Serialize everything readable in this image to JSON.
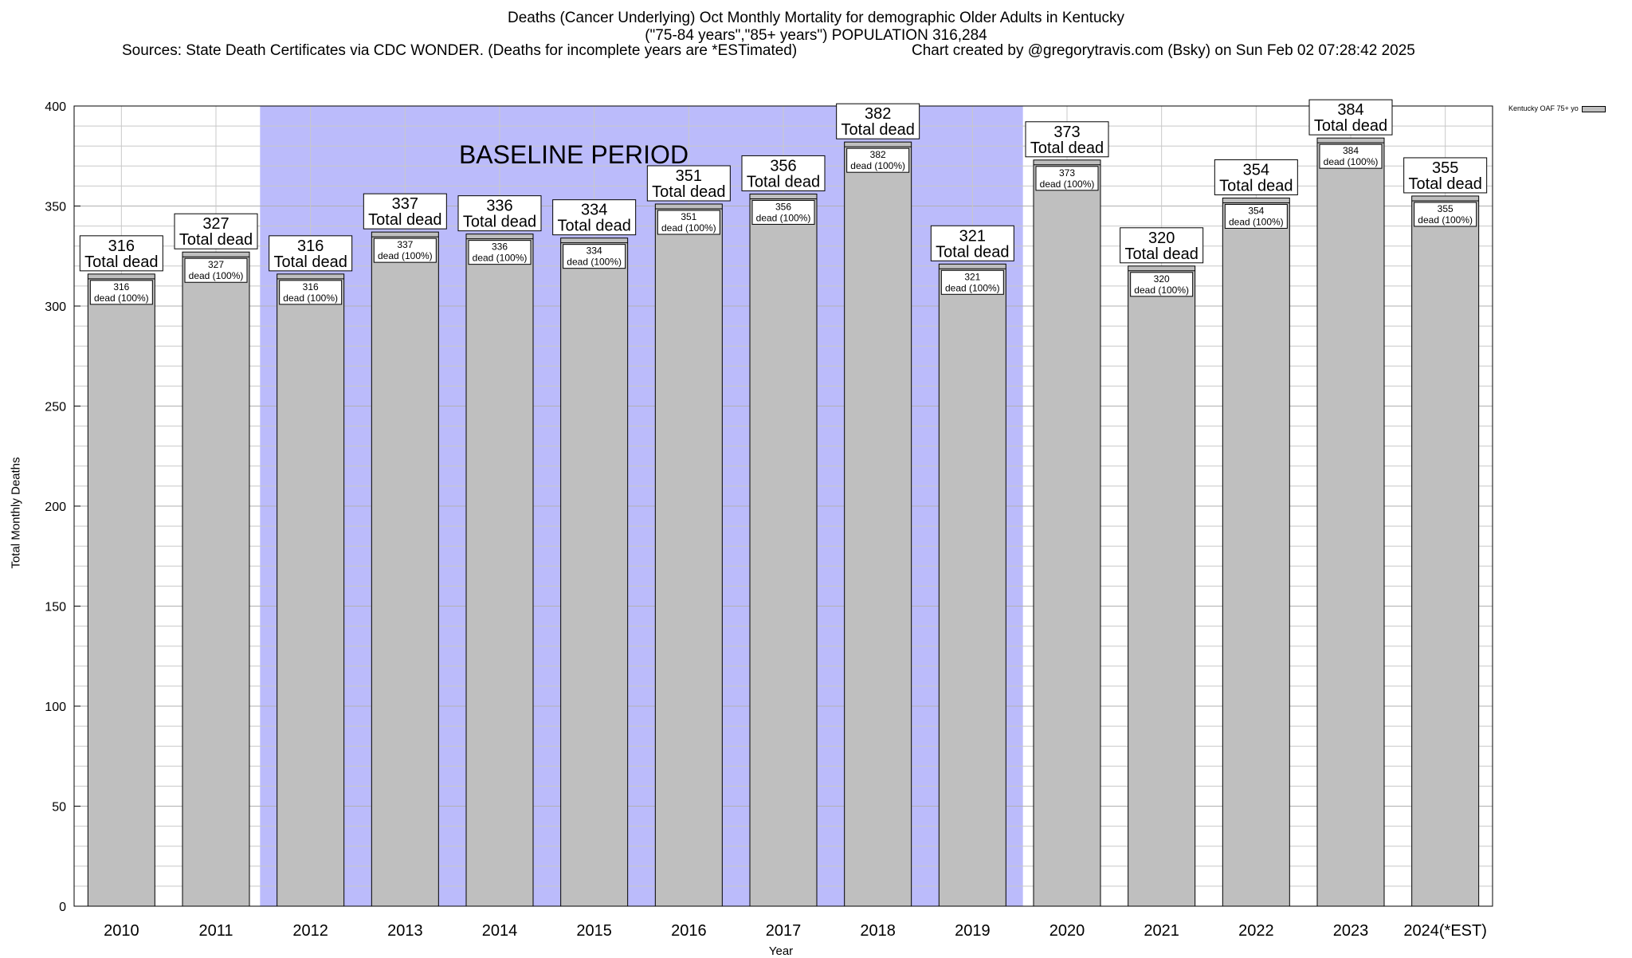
{
  "header": {
    "title_line1": "Deaths (Cancer Underlying) Oct Monthly Mortality for demographic Older Adults in Kentucky",
    "title_line2": "(\"75-84 years\",\"85+ years\") POPULATION 316,284",
    "sources": "Sources: State Death Certificates via CDC WONDER. (Deaths for incomplete years are *ESTimated)",
    "credit": "Chart created by @gregorytravis.com (Bsky) on Sun Feb 02 07:28:42 2025"
  },
  "colors": {
    "bar": "#bfbfbf",
    "baseline": "#bbbbfb",
    "grid": "#c8c8c8"
  },
  "chart_data": {
    "type": "bar",
    "xlabel": "Year",
    "ylabel": "Total Monthly Deaths",
    "ylim": [
      0,
      400
    ],
    "yticks": [
      0,
      50,
      100,
      150,
      200,
      250,
      300,
      350,
      400
    ],
    "grid": true,
    "legend_position": "top-right",
    "categories": [
      "2010",
      "2011",
      "2012",
      "2013",
      "2014",
      "2015",
      "2016",
      "2017",
      "2018",
      "2019",
      "2020",
      "2021",
      "2022",
      "2023",
      "2024(*EST)"
    ],
    "series": [
      {
        "name": "Kentucky OAF 75+ yo",
        "values": [
          316,
          327,
          316,
          337,
          336,
          334,
          351,
          356,
          382,
          321,
          373,
          320,
          354,
          384,
          355
        ]
      }
    ],
    "label_total_suffix": "Total dead",
    "label_inner_suffix": "dead (100%)",
    "baseline": {
      "label": "BASELINE PERIOD",
      "from": "2012",
      "to": "2019"
    }
  }
}
